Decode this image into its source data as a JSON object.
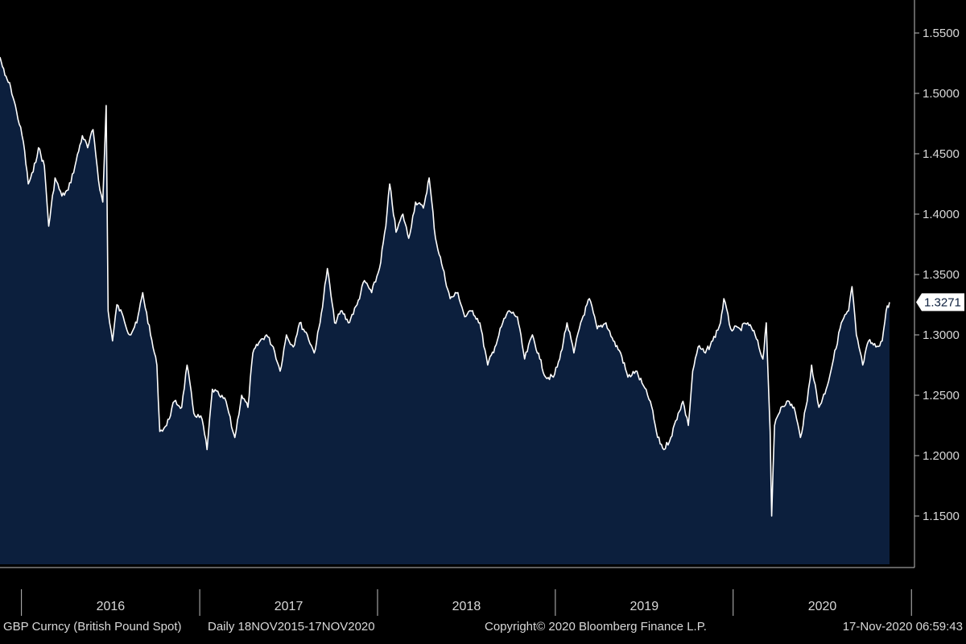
{
  "colors": {
    "background": "#000000",
    "area_fill": "#0c1f3d",
    "line": "#ffffff",
    "axis": "#bfbfbf",
    "text": "#d9d9d9",
    "last_label_bg": "#ffffff",
    "last_label_text": "#0c1f3d"
  },
  "footer": {
    "security": "GBP Curncy (British Pound Spot)",
    "period": "Daily 18NOV2015-17NOV2020",
    "copyright": "Copyright© 2020 Bloomberg Finance L.P.",
    "timestamp": "17-Nov-2020 06:59:43"
  },
  "chart_data": {
    "type": "area",
    "title": "",
    "xlabel": "",
    "ylabel": "",
    "x_range": [
      "2015-11-18",
      "2020-11-17"
    ],
    "ylim": [
      1.11,
      1.56
    ],
    "y_axis_side": "right",
    "grid": false,
    "legend": "none",
    "y_ticks": [
      "1.1500",
      "1.2000",
      "1.2500",
      "1.3000",
      "1.3500",
      "1.4000",
      "1.4500",
      "1.5000",
      "1.5500"
    ],
    "x_year_labels": [
      "2016",
      "2017",
      "2018",
      "2019",
      "2020"
    ],
    "last_value_label": "1.3271",
    "series": [
      {
        "values": [
          [
            "2015-11-18",
            1.53
          ],
          [
            "2015-11-28",
            1.515
          ],
          [
            "2015-12-10",
            1.505
          ],
          [
            "2015-12-22",
            1.485
          ],
          [
            "2016-01-05",
            1.46
          ],
          [
            "2016-01-15",
            1.425
          ],
          [
            "2016-01-25",
            1.435
          ],
          [
            "2016-02-05",
            1.455
          ],
          [
            "2016-02-17",
            1.44
          ],
          [
            "2016-02-26",
            1.39
          ],
          [
            "2016-03-10",
            1.43
          ],
          [
            "2016-03-24",
            1.415
          ],
          [
            "2016-04-06",
            1.42
          ],
          [
            "2016-04-20",
            1.44
          ],
          [
            "2016-05-05",
            1.465
          ],
          [
            "2016-05-16",
            1.455
          ],
          [
            "2016-05-27",
            1.47
          ],
          [
            "2016-06-10",
            1.42
          ],
          [
            "2016-06-16",
            1.41
          ],
          [
            "2016-06-23",
            1.49
          ],
          [
            "2016-06-27",
            1.32
          ],
          [
            "2016-07-06",
            1.295
          ],
          [
            "2016-07-15",
            1.325
          ],
          [
            "2016-07-28",
            1.315
          ],
          [
            "2016-08-10",
            1.3
          ],
          [
            "2016-08-25",
            1.31
          ],
          [
            "2016-09-06",
            1.335
          ],
          [
            "2016-09-22",
            1.3
          ],
          [
            "2016-10-05",
            1.275
          ],
          [
            "2016-10-11",
            1.22
          ],
          [
            "2016-10-25",
            1.225
          ],
          [
            "2016-11-10",
            1.245
          ],
          [
            "2016-11-25",
            1.24
          ],
          [
            "2016-12-06",
            1.275
          ],
          [
            "2016-12-20",
            1.235
          ],
          [
            "2017-01-06",
            1.23
          ],
          [
            "2017-01-16",
            1.205
          ],
          [
            "2017-01-27",
            1.255
          ],
          [
            "2017-02-10",
            1.25
          ],
          [
            "2017-02-24",
            1.245
          ],
          [
            "2017-03-10",
            1.22
          ],
          [
            "2017-03-14",
            1.215
          ],
          [
            "2017-03-28",
            1.25
          ],
          [
            "2017-04-10",
            1.24
          ],
          [
            "2017-04-20",
            1.285
          ],
          [
            "2017-05-05",
            1.295
          ],
          [
            "2017-05-18",
            1.3
          ],
          [
            "2017-06-01",
            1.29
          ],
          [
            "2017-06-15",
            1.27
          ],
          [
            "2017-06-28",
            1.3
          ],
          [
            "2017-07-12",
            1.29
          ],
          [
            "2017-07-25",
            1.31
          ],
          [
            "2017-08-10",
            1.3
          ],
          [
            "2017-08-24",
            1.285
          ],
          [
            "2017-09-05",
            1.31
          ],
          [
            "2017-09-20",
            1.355
          ],
          [
            "2017-10-05",
            1.31
          ],
          [
            "2017-10-20",
            1.32
          ],
          [
            "2017-11-02",
            1.31
          ],
          [
            "2017-11-20",
            1.325
          ],
          [
            "2017-12-05",
            1.345
          ],
          [
            "2017-12-20",
            1.335
          ],
          [
            "2018-01-05",
            1.355
          ],
          [
            "2018-01-18",
            1.39
          ],
          [
            "2018-01-26",
            1.425
          ],
          [
            "2018-02-08",
            1.385
          ],
          [
            "2018-02-22",
            1.4
          ],
          [
            "2018-03-06",
            1.38
          ],
          [
            "2018-03-20",
            1.41
          ],
          [
            "2018-04-05",
            1.405
          ],
          [
            "2018-04-17",
            1.43
          ],
          [
            "2018-04-30",
            1.38
          ],
          [
            "2018-05-15",
            1.355
          ],
          [
            "2018-05-30",
            1.33
          ],
          [
            "2018-06-15",
            1.335
          ],
          [
            "2018-06-29",
            1.315
          ],
          [
            "2018-07-15",
            1.32
          ],
          [
            "2018-07-30",
            1.31
          ],
          [
            "2018-08-15",
            1.275
          ],
          [
            "2018-08-30",
            1.29
          ],
          [
            "2018-09-15",
            1.31
          ],
          [
            "2018-09-28",
            1.32
          ],
          [
            "2018-10-15",
            1.315
          ],
          [
            "2018-10-30",
            1.28
          ],
          [
            "2018-11-15",
            1.3
          ],
          [
            "2018-11-30",
            1.28
          ],
          [
            "2018-12-12",
            1.265
          ],
          [
            "2018-12-28",
            1.265
          ],
          [
            "2019-01-10",
            1.28
          ],
          [
            "2019-01-25",
            1.31
          ],
          [
            "2019-02-08",
            1.285
          ],
          [
            "2019-02-22",
            1.31
          ],
          [
            "2019-03-12",
            1.33
          ],
          [
            "2019-03-28",
            1.305
          ],
          [
            "2019-04-15",
            1.31
          ],
          [
            "2019-04-30",
            1.295
          ],
          [
            "2019-05-15",
            1.285
          ],
          [
            "2019-05-30",
            1.265
          ],
          [
            "2019-06-15",
            1.27
          ],
          [
            "2019-06-28",
            1.26
          ],
          [
            "2019-07-15",
            1.245
          ],
          [
            "2019-07-30",
            1.215
          ],
          [
            "2019-08-12",
            1.205
          ],
          [
            "2019-08-26",
            1.215
          ],
          [
            "2019-09-10",
            1.235
          ],
          [
            "2019-09-20",
            1.245
          ],
          [
            "2019-10-01",
            1.225
          ],
          [
            "2019-10-10",
            1.27
          ],
          [
            "2019-10-21",
            1.29
          ],
          [
            "2019-11-05",
            1.285
          ],
          [
            "2019-11-20",
            1.295
          ],
          [
            "2019-12-06",
            1.31
          ],
          [
            "2019-12-13",
            1.33
          ],
          [
            "2019-12-27",
            1.305
          ],
          [
            "2020-01-15",
            1.305
          ],
          [
            "2020-01-31",
            1.31
          ],
          [
            "2020-02-15",
            1.3
          ],
          [
            "2020-03-02",
            1.28
          ],
          [
            "2020-03-09",
            1.31
          ],
          [
            "2020-03-17",
            1.22
          ],
          [
            "2020-03-20",
            1.15
          ],
          [
            "2020-03-26",
            1.225
          ],
          [
            "2020-04-08",
            1.24
          ],
          [
            "2020-04-20",
            1.245
          ],
          [
            "2020-05-05",
            1.24
          ],
          [
            "2020-05-18",
            1.215
          ],
          [
            "2020-06-01",
            1.245
          ],
          [
            "2020-06-10",
            1.275
          ],
          [
            "2020-06-25",
            1.24
          ],
          [
            "2020-07-10",
            1.255
          ],
          [
            "2020-07-25",
            1.28
          ],
          [
            "2020-08-10",
            1.31
          ],
          [
            "2020-08-25",
            1.32
          ],
          [
            "2020-09-01",
            1.34
          ],
          [
            "2020-09-10",
            1.3
          ],
          [
            "2020-09-23",
            1.275
          ],
          [
            "2020-10-05",
            1.295
          ],
          [
            "2020-10-20",
            1.29
          ],
          [
            "2020-11-02",
            1.295
          ],
          [
            "2020-11-10",
            1.32
          ],
          [
            "2020-11-17",
            1.3271
          ]
        ]
      }
    ]
  }
}
